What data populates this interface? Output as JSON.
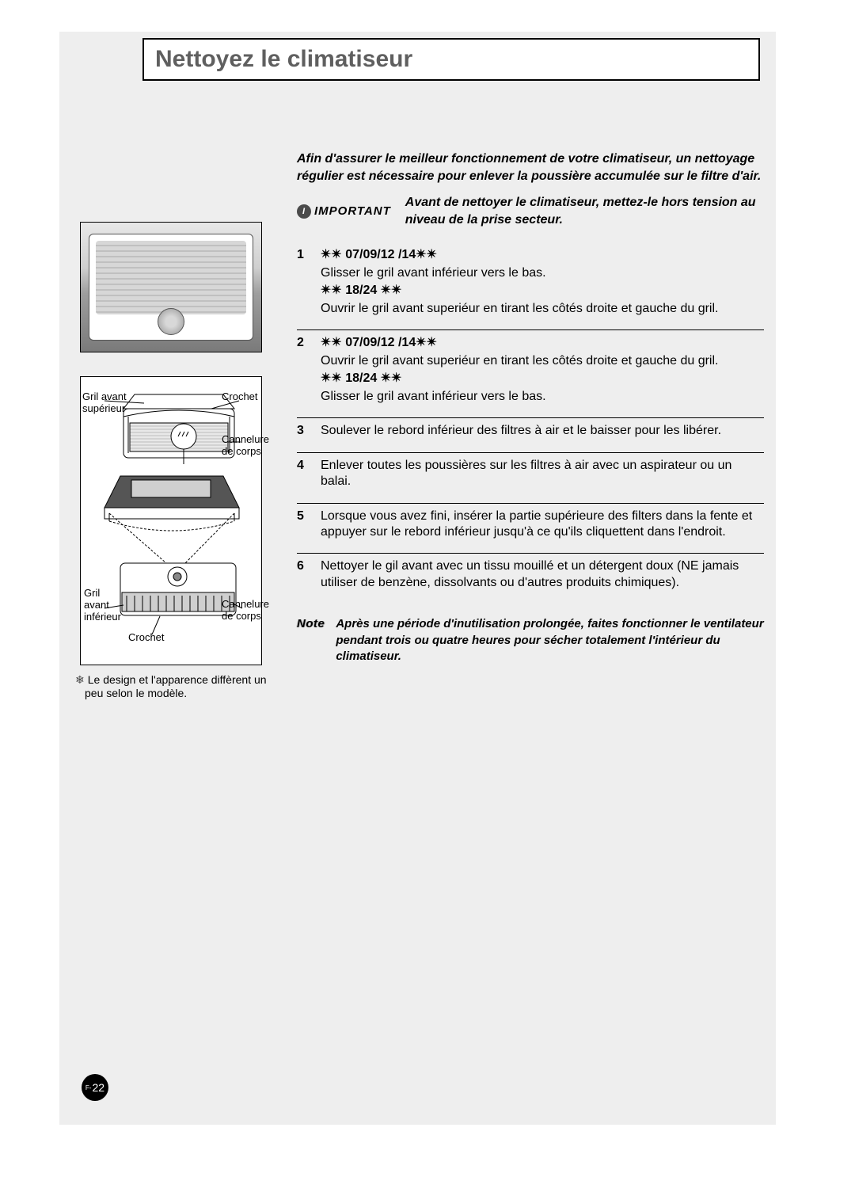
{
  "page": {
    "number_prefix": "F-",
    "number": "22",
    "background_color": "#eeeeee",
    "title": "Nettoyez le climatiseur"
  },
  "left": {
    "labels": {
      "upper_grill": "Gril avant\nsupérieur",
      "hook_top": "Crochet",
      "body_groove_top": "Cannelure\nde corps",
      "lower_grill": "Gril\navant\ninférieur",
      "body_groove_bottom": "Cannelure\nde corps",
      "hook_bottom": "Crochet"
    },
    "design_note": "Le design et l'apparence diffèrent un peu selon le modèle."
  },
  "right": {
    "intro": "Afin d'assurer le meilleur fonctionnement de votre climatiseur, un nettoyage régulier est nécessaire pour enlever la poussière accumulée sur le filtre d'air.",
    "important_label": "IMPORTANT",
    "important_text": "Avant de nettoyer le climatiseur, mettez-le hors tension au niveau de la prise secteur.",
    "model_a_tag": "✴✴ 07/09/12 /14✴✴",
    "model_b_tag": "✴✴ 18/24 ✴✴",
    "steps": [
      {
        "num": "1",
        "blocks": [
          {
            "tag_key": "model_a_tag",
            "text": "Glisser le gril avant inférieur vers le bas."
          },
          {
            "tag_key": "model_b_tag",
            "text": "Ouvrir le gril avant superiéur en tirant les côtés droite et gauche du gril."
          }
        ]
      },
      {
        "num": "2",
        "blocks": [
          {
            "tag_key": "model_a_tag",
            "text": "Ouvrir le gril avant superiéur en tirant les côtés droite et gauche du gril."
          },
          {
            "tag_key": "model_b_tag",
            "text": "Glisser le gril avant inférieur vers le bas."
          }
        ]
      },
      {
        "num": "3",
        "text": "Soulever le rebord inférieur des filtres à air et le baisser pour les libérer."
      },
      {
        "num": "4",
        "text": "Enlever toutes les poussières sur les filtres à air avec un aspirateur ou un balai."
      },
      {
        "num": "5",
        "text": "Lorsque vous avez fini, insérer la partie supérieure des filters dans la fente et appuyer sur le rebord inférieur jusqu'à ce qu'ils cliquettent dans l'endroit."
      },
      {
        "num": "6",
        "text": "Nettoyer le gil avant avec un tissu mouillé et un détergent doux (NE jamais utiliser de benzène, dissolvants ou d'autres produits chimiques)."
      }
    ],
    "note_label": "Note",
    "note_text": "Après une période d'inutilisation prolongée, faites fonctionner le ventilateur pendant trois ou quatre heures pour sécher totalement l'intérieur du climatiseur."
  }
}
